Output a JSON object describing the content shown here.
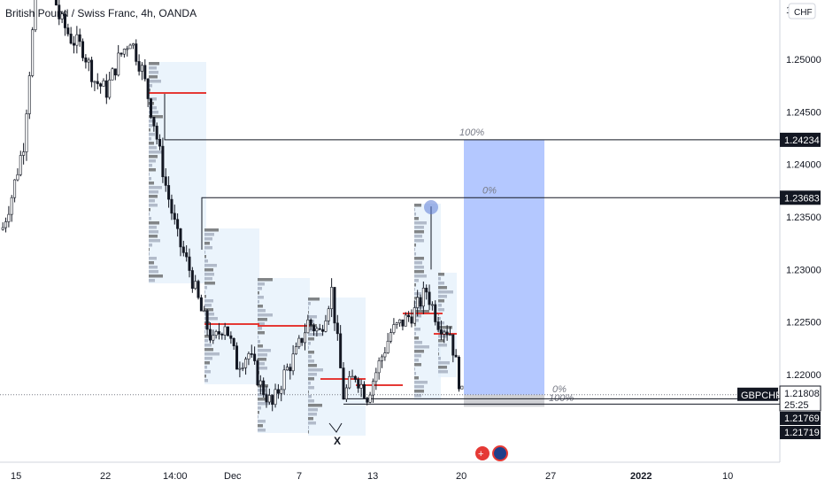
{
  "header": {
    "title": "British Pound / Swiss Franc, 4h, OANDA",
    "currency_button": "CHF"
  },
  "colors": {
    "up": "#26a69a",
    "down": "#131722",
    "target": "#2962ff",
    "stop": "#787b86",
    "poc": "#e53935",
    "profile": "#90a4d8"
  },
  "chart_data": {
    "type": "candlestick",
    "symbol": "GBPCHF",
    "timeframe": "4h",
    "xlabels": [
      "15",
      "22",
      "14:00",
      "Dec",
      "7",
      "13",
      "20",
      "27",
      "2022",
      "10"
    ],
    "ylim": [
      1.216,
      1.26
    ],
    "y_ticks": [
      "1.25000",
      "1.24500",
      "1.24000",
      "1.23500",
      "1.23000",
      "1.22500",
      "1.22000"
    ],
    "top_tick_partial": "1.2?0",
    "close_path": [
      1.233,
      1.237,
      1.242,
      1.256,
      1.259,
      1.254,
      1.252,
      1.251,
      1.248,
      1.247,
      1.25,
      1.252,
      1.249,
      1.244,
      1.238,
      1.233,
      1.23,
      1.226,
      1.223,
      1.225,
      1.221,
      1.222,
      1.219,
      1.217,
      1.22,
      1.222,
      1.225,
      1.224,
      1.228,
      1.218,
      1.22,
      1.218,
      1.221,
      1.224,
      1.225,
      1.226,
      1.228,
      1.225,
      1.224,
      1.218
    ],
    "horizontal_levels": [
      {
        "price": 1.24234,
        "label": "1.24234"
      },
      {
        "price": 1.23683,
        "label": "1.23683"
      }
    ],
    "price_labels": {
      "symbol": "GBPCHF",
      "last": "1.21808",
      "countdown": "25:25",
      "level_a": "1.21769",
      "level_b": "1.21719"
    },
    "position_tool": {
      "target_pct": "100%",
      "entry_pct": "0%",
      "stop_pct": "100%",
      "stop_entry_pct": "0%",
      "target_price": 1.24234,
      "entry_price": 1.21808,
      "stop_price": 1.21719
    },
    "marker_label": "X"
  }
}
